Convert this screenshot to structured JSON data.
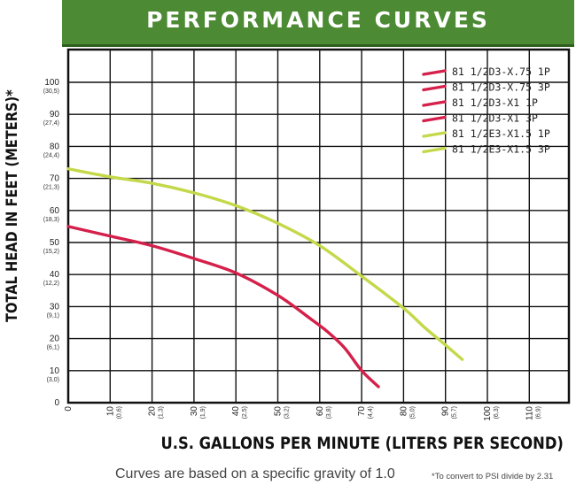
{
  "chart_data": {
    "type": "line",
    "title": "PERFORMANCE CURVES",
    "xlabel": "U.S. GALLONS PER MINUTE (LITERS PER SECOND)",
    "ylabel": "TOTAL HEAD IN FEET (METERS)*",
    "xlim": [
      0,
      120
    ],
    "ylim": [
      0,
      110
    ],
    "grid": true,
    "legend_position": "top-right",
    "x_ticks": [
      {
        "value": 0,
        "label": "0",
        "sub": ""
      },
      {
        "value": 10,
        "label": "10",
        "sub": "(0,6)"
      },
      {
        "value": 20,
        "label": "20",
        "sub": "(1,3)"
      },
      {
        "value": 30,
        "label": "30",
        "sub": "(1,9)"
      },
      {
        "value": 40,
        "label": "40",
        "sub": "(2,5)"
      },
      {
        "value": 50,
        "label": "50",
        "sub": "(3,2)"
      },
      {
        "value": 60,
        "label": "60",
        "sub": "(3,8)"
      },
      {
        "value": 70,
        "label": "70",
        "sub": "(4,4)"
      },
      {
        "value": 80,
        "label": "80",
        "sub": "(5,0)"
      },
      {
        "value": 90,
        "label": "90",
        "sub": "(5,7)"
      },
      {
        "value": 100,
        "label": "100",
        "sub": "(6,3)"
      },
      {
        "value": 110,
        "label": "110",
        "sub": "(6,9)"
      }
    ],
    "y_ticks": [
      {
        "value": 0,
        "label": "0",
        "sub": ""
      },
      {
        "value": 10,
        "label": "10",
        "sub": "(3,0)"
      },
      {
        "value": 20,
        "label": "20",
        "sub": "(6,1)"
      },
      {
        "value": 30,
        "label": "30",
        "sub": "(9,1)"
      },
      {
        "value": 40,
        "label": "40",
        "sub": "(12,2)"
      },
      {
        "value": 50,
        "label": "50",
        "sub": "(15,2)"
      },
      {
        "value": 60,
        "label": "60",
        "sub": "(18,3)"
      },
      {
        "value": 70,
        "label": "70",
        "sub": "(21,3)"
      },
      {
        "value": 80,
        "label": "80",
        "sub": "(24,4)"
      },
      {
        "value": 90,
        "label": "90",
        "sub": "(27,4)"
      },
      {
        "value": 100,
        "label": "100",
        "sub": "(30,5)"
      }
    ],
    "series": [
      {
        "name": "81 1/2D3-X.75 1P",
        "color": "#d4204a",
        "x": [],
        "y": []
      },
      {
        "name": "81 1/2D3-X.75 3P",
        "color": "#d4204a",
        "x": [],
        "y": []
      },
      {
        "name": "81 1/2D3-X1 1P",
        "color": "#d4204a",
        "x": [],
        "y": []
      },
      {
        "name": "81 1/2D3-X1 3P",
        "color": "#d4204a",
        "x": [
          0,
          10,
          20,
          30,
          40,
          50,
          58,
          62,
          66,
          70,
          74
        ],
        "y": [
          55,
          52,
          49,
          45,
          40.5,
          33.5,
          26,
          22,
          17,
          10,
          5
        ]
      },
      {
        "name": "81 1/2E3-X1.5 1P",
        "color": "#c5d84a",
        "x": [],
        "y": []
      },
      {
        "name": "81 1/2E3-X1.5 3P",
        "color": "#c5d84a",
        "x": [
          0,
          10,
          20,
          30,
          40,
          50,
          60,
          70,
          80,
          85,
          90,
          94
        ],
        "y": [
          73,
          70.5,
          68.5,
          65.5,
          61.5,
          56,
          49,
          39.5,
          29.5,
          23.5,
          18,
          13.5
        ]
      }
    ]
  },
  "footnote": "Curves are based on a specific gravity of 1.0",
  "psi_note": "*To convert to PSI divide by 2.31",
  "colors": {
    "banner": "#4c8a34",
    "red_curve": "#d4204a",
    "green_curve": "#c5d84a"
  }
}
